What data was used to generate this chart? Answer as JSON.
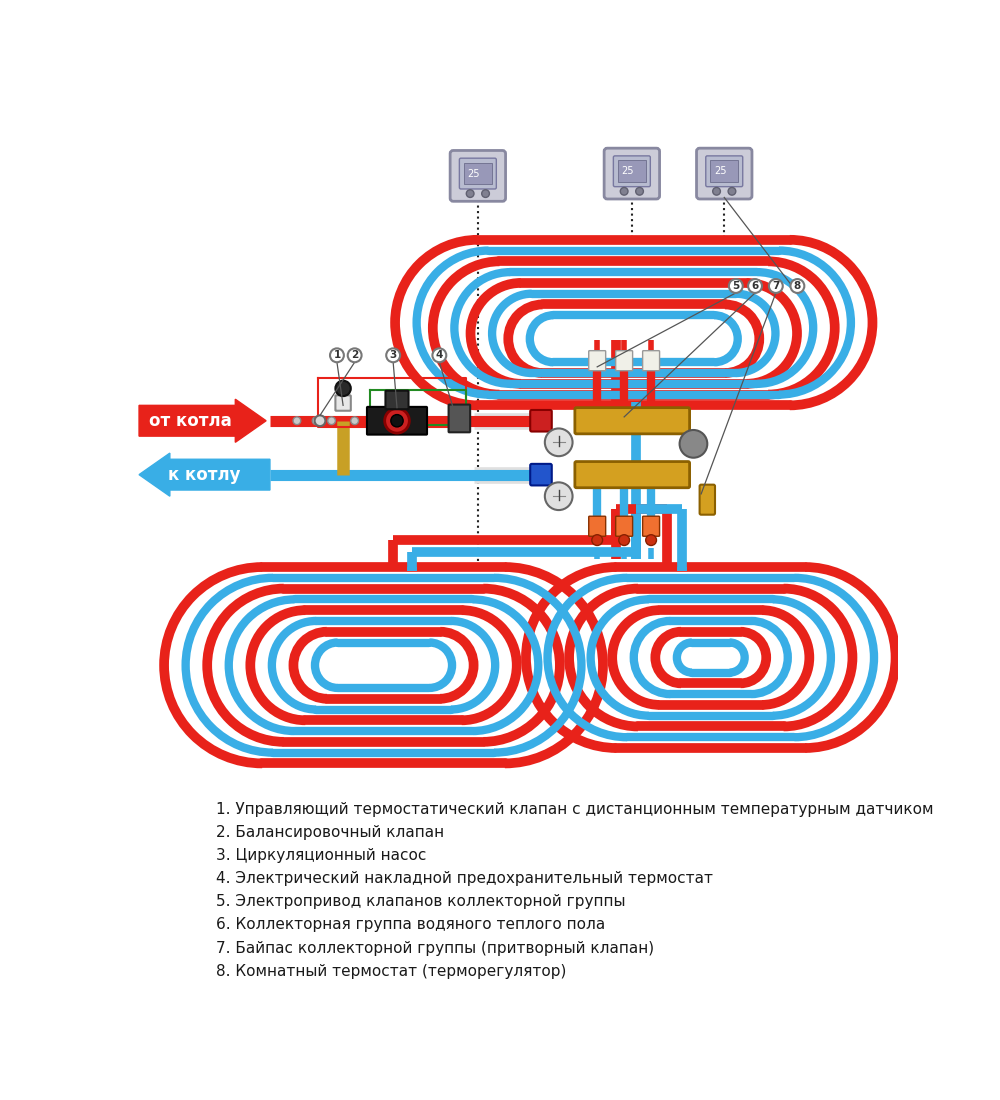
{
  "bg": "#ffffff",
  "red": "#e8221a",
  "blue": "#39aee6",
  "gold": "#d4a020",
  "dark_gold": "#8B6000",
  "gray": "#909090",
  "dark_gray": "#444444",
  "light_gray": "#cccccc",
  "green": "#228B22",
  "orange": "#f07030",
  "legend": [
    "1. Управляющий термостатический клапан с дистанционным температурным датчиком",
    "2. Балансировочный клапан",
    "3. Циркуляционный насос",
    "4. Электрический накладной предохранительный термостат",
    "5. Электропривод клапанов коллекторной группы",
    "6. Коллекторная группа водяного теплого пола",
    "7. Байпас коллекторной группы (притворный клапан)",
    "8. Комнатный термостат (терморегулятор)"
  ]
}
